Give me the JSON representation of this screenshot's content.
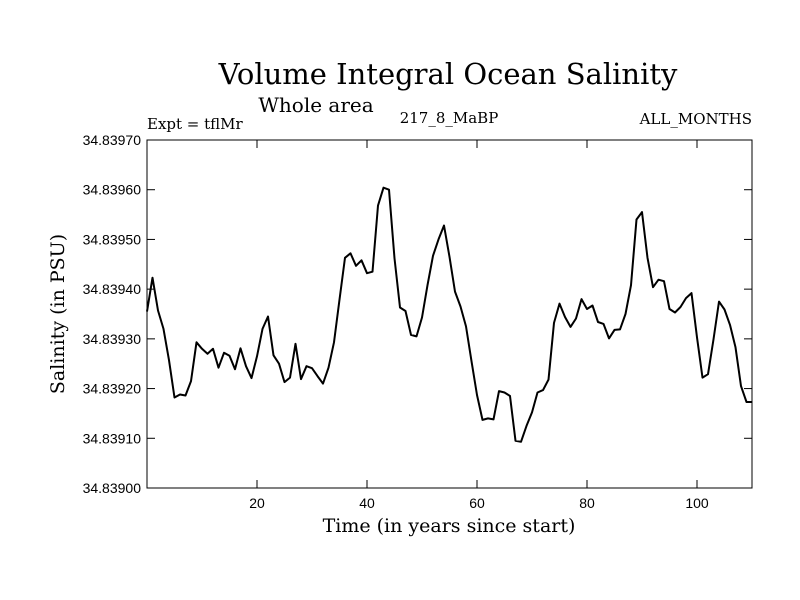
{
  "chart_data": {
    "type": "line",
    "title": "Volume Integral Ocean Salinity",
    "subtitle": "Whole area",
    "annotations": {
      "left": "Expt = tflMr",
      "center": "217_8_MaBP",
      "right": "ALL_MONTHS"
    },
    "xlabel": "Time (in years since start)",
    "ylabel": "Salinity (in PSU)",
    "xlim": [
      0,
      110
    ],
    "ylim": [
      34.839,
      34.8397
    ],
    "xticks": [
      20,
      40,
      60,
      80,
      100
    ],
    "xtick_labels": [
      "20",
      "40",
      "60",
      "80",
      "100"
    ],
    "yticks": [
      34.839,
      34.8391,
      34.8392,
      34.8393,
      34.8394,
      34.8395,
      34.8396,
      34.8397
    ],
    "ytick_labels": [
      "34.83900",
      "34.83910",
      "34.83920",
      "34.83930",
      "34.83940",
      "34.83950",
      "34.83960",
      "34.83970"
    ],
    "grid": false,
    "series": [
      {
        "name": "Salinity",
        "x": [
          0,
          1,
          2,
          3,
          4,
          5,
          6,
          7,
          8,
          9,
          10,
          11,
          12,
          13,
          14,
          15,
          16,
          17,
          18,
          19,
          20,
          21,
          22,
          23,
          24,
          25,
          26,
          27,
          28,
          29,
          30,
          31,
          32,
          33,
          34,
          35,
          36,
          37,
          38,
          39,
          40,
          41,
          42,
          43,
          44,
          45,
          46,
          47,
          48,
          49,
          50,
          51,
          52,
          53,
          54,
          55,
          56,
          57,
          58,
          59,
          60,
          61,
          62,
          63,
          64,
          65,
          66,
          67,
          68,
          69,
          70,
          71,
          72,
          73,
          74,
          75,
          76,
          77,
          78,
          79,
          80,
          81,
          82,
          83,
          84,
          85,
          86,
          87,
          88,
          89,
          90,
          91,
          92,
          93,
          94,
          95,
          96,
          97,
          98,
          99,
          100,
          101,
          102,
          103,
          104,
          105,
          106,
          107,
          108,
          109,
          110
        ],
        "values": [
          34.839355,
          34.839423,
          34.839357,
          34.83932,
          34.839257,
          34.839182,
          34.839188,
          34.839186,
          34.839215,
          34.839293,
          34.83928,
          34.83927,
          34.83928,
          34.839242,
          34.839272,
          34.839266,
          34.839239,
          34.839281,
          34.839245,
          34.839221,
          34.839265,
          34.83932,
          34.839345,
          34.839267,
          34.83925,
          34.839213,
          34.839222,
          34.83929,
          34.839219,
          34.839245,
          34.839241,
          34.839225,
          34.83921,
          34.839242,
          34.839293,
          34.839379,
          34.839463,
          34.839472,
          34.839447,
          34.839458,
          34.839432,
          34.839435,
          34.839568,
          34.839604,
          34.8396,
          34.839462,
          34.839363,
          34.839356,
          34.839308,
          34.839305,
          34.839343,
          34.839408,
          34.839467,
          34.8395,
          34.839528,
          34.839465,
          34.839395,
          34.839365,
          34.839325,
          34.839255,
          34.839187,
          34.839137,
          34.83914,
          34.839138,
          34.839195,
          34.839192,
          34.839185,
          34.839095,
          34.839093,
          34.839125,
          34.839152,
          34.839192,
          34.839197,
          34.839218,
          34.839332,
          34.839371,
          34.839344,
          34.839324,
          34.839341,
          34.83938,
          34.83936,
          34.839367,
          34.839334,
          34.83933,
          34.839301,
          34.839318,
          34.839319,
          34.83935,
          34.839408,
          34.83954,
          34.839555,
          34.839463,
          34.839404,
          34.839419,
          34.839416,
          34.83936,
          34.839353,
          34.839364,
          34.839382,
          34.839392,
          34.839303,
          34.839222,
          34.839229,
          34.839299,
          34.839375,
          34.839359,
          34.839328,
          34.839283,
          34.839205,
          34.839173,
          34.839173
        ]
      }
    ]
  }
}
